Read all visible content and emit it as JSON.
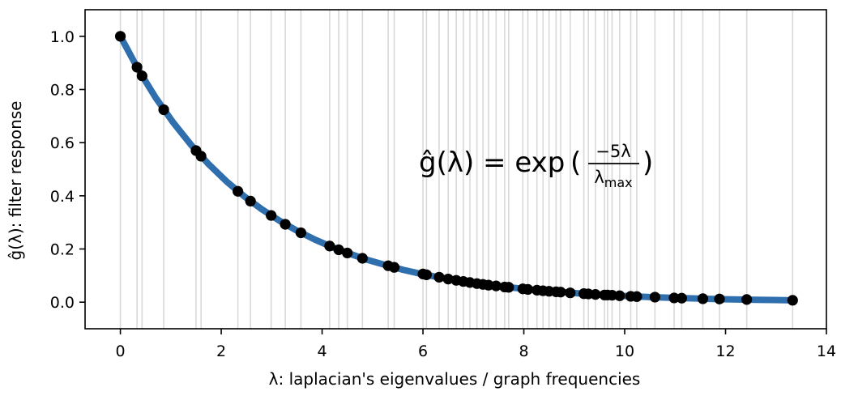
{
  "chart_data": {
    "type": "line",
    "title": "",
    "xlabel": "λ: laplacian's eigenvalues / graph frequencies",
    "ylabel": "ĝ(λ): filter response",
    "xlim": [
      -0.7,
      14.0
    ],
    "ylim": [
      -0.1,
      1.1
    ],
    "xticks": [
      0,
      2,
      4,
      6,
      8,
      10,
      12,
      14
    ],
    "yticks": [
      0.0,
      0.2,
      0.4,
      0.6,
      0.8,
      1.0
    ],
    "xtick_labels": [
      "0",
      "2",
      "4",
      "6",
      "8",
      "10",
      "12",
      "14"
    ],
    "ytick_labels": [
      "0.0",
      "0.2",
      "0.4",
      "0.6",
      "0.8",
      "1.0"
    ],
    "grid": false,
    "annotation": "ĝ(λ) = exp(−5λ / λmax)",
    "annotation_parts": {
      "lhs": "ĝ(λ) = exp",
      "numerator": "−5λ",
      "denominator": "λ",
      "denominator_sub": "max",
      "open_paren": "(",
      "close_paren": ")"
    },
    "lambda_max": 13.33,
    "series": [
      {
        "type": "line",
        "color": "#2f6fad",
        "x": [
          0.0,
          0.35,
          0.7,
          1.05,
          1.4,
          1.75,
          2.1,
          2.45,
          2.8,
          3.15,
          3.5,
          3.85,
          4.2,
          4.55,
          4.9,
          5.25,
          5.6,
          5.95,
          6.3,
          6.65,
          7.0,
          7.35,
          7.7,
          8.05,
          8.4,
          8.75,
          9.1,
          9.45,
          9.8,
          10.15,
          10.5,
          10.85,
          11.2,
          11.55,
          11.9,
          12.25,
          12.6,
          12.95,
          13.33
        ],
        "y": [
          1.0,
          0.877,
          0.769,
          0.675,
          0.592,
          0.519,
          0.455,
          0.399,
          0.35,
          0.307,
          0.269,
          0.236,
          0.207,
          0.182,
          0.159,
          0.14,
          0.122,
          0.107,
          0.094,
          0.083,
          0.072,
          0.064,
          0.056,
          0.049,
          0.043,
          0.038,
          0.033,
          0.029,
          0.025,
          0.022,
          0.019,
          0.017,
          0.015,
          0.013,
          0.011,
          0.01,
          0.009,
          0.008,
          0.007
        ]
      },
      {
        "type": "scatter",
        "color": "#000000",
        "x": [
          0.0,
          0.33,
          0.43,
          0.86,
          1.5,
          1.6,
          2.33,
          2.58,
          2.99,
          3.27,
          3.58,
          4.15,
          4.33,
          4.5,
          4.8,
          5.31,
          5.43,
          6.0,
          6.07,
          6.32,
          6.5,
          6.66,
          6.8,
          6.93,
          7.07,
          7.19,
          7.3,
          7.45,
          7.62,
          7.7,
          7.98,
          8.08,
          8.26,
          8.38,
          8.5,
          8.64,
          8.73,
          8.92,
          9.19,
          9.28,
          9.42,
          9.6,
          9.66,
          9.75,
          9.9,
          10.12,
          10.24,
          10.6,
          10.98,
          11.13,
          11.55,
          11.88,
          12.42,
          13.33
        ],
        "y": [
          1.0,
          0.884,
          0.851,
          0.724,
          0.57,
          0.549,
          0.417,
          0.38,
          0.326,
          0.293,
          0.261,
          0.211,
          0.197,
          0.185,
          0.165,
          0.137,
          0.131,
          0.106,
          0.103,
          0.094,
          0.087,
          0.082,
          0.078,
          0.074,
          0.07,
          0.067,
          0.064,
          0.061,
          0.057,
          0.056,
          0.05,
          0.048,
          0.045,
          0.043,
          0.041,
          0.039,
          0.038,
          0.035,
          0.032,
          0.031,
          0.029,
          0.027,
          0.027,
          0.026,
          0.024,
          0.022,
          0.021,
          0.019,
          0.016,
          0.015,
          0.013,
          0.012,
          0.01,
          0.007
        ]
      }
    ],
    "vertical_lines": {
      "color": "#d9d9d9",
      "x": [
        0.0,
        0.33,
        0.43,
        0.86,
        1.5,
        1.6,
        2.33,
        2.58,
        2.99,
        3.27,
        3.58,
        4.15,
        4.33,
        4.5,
        4.8,
        5.31,
        5.43,
        6.0,
        6.07,
        6.32,
        6.5,
        6.66,
        6.8,
        6.93,
        7.07,
        7.19,
        7.3,
        7.45,
        7.62,
        7.7,
        7.98,
        8.08,
        8.26,
        8.38,
        8.5,
        8.64,
        8.73,
        8.92,
        9.19,
        9.28,
        9.42,
        9.6,
        9.66,
        9.75,
        9.9,
        10.12,
        10.24,
        10.6,
        10.98,
        11.13,
        11.55,
        11.88,
        12.42,
        13.33
      ]
    }
  }
}
